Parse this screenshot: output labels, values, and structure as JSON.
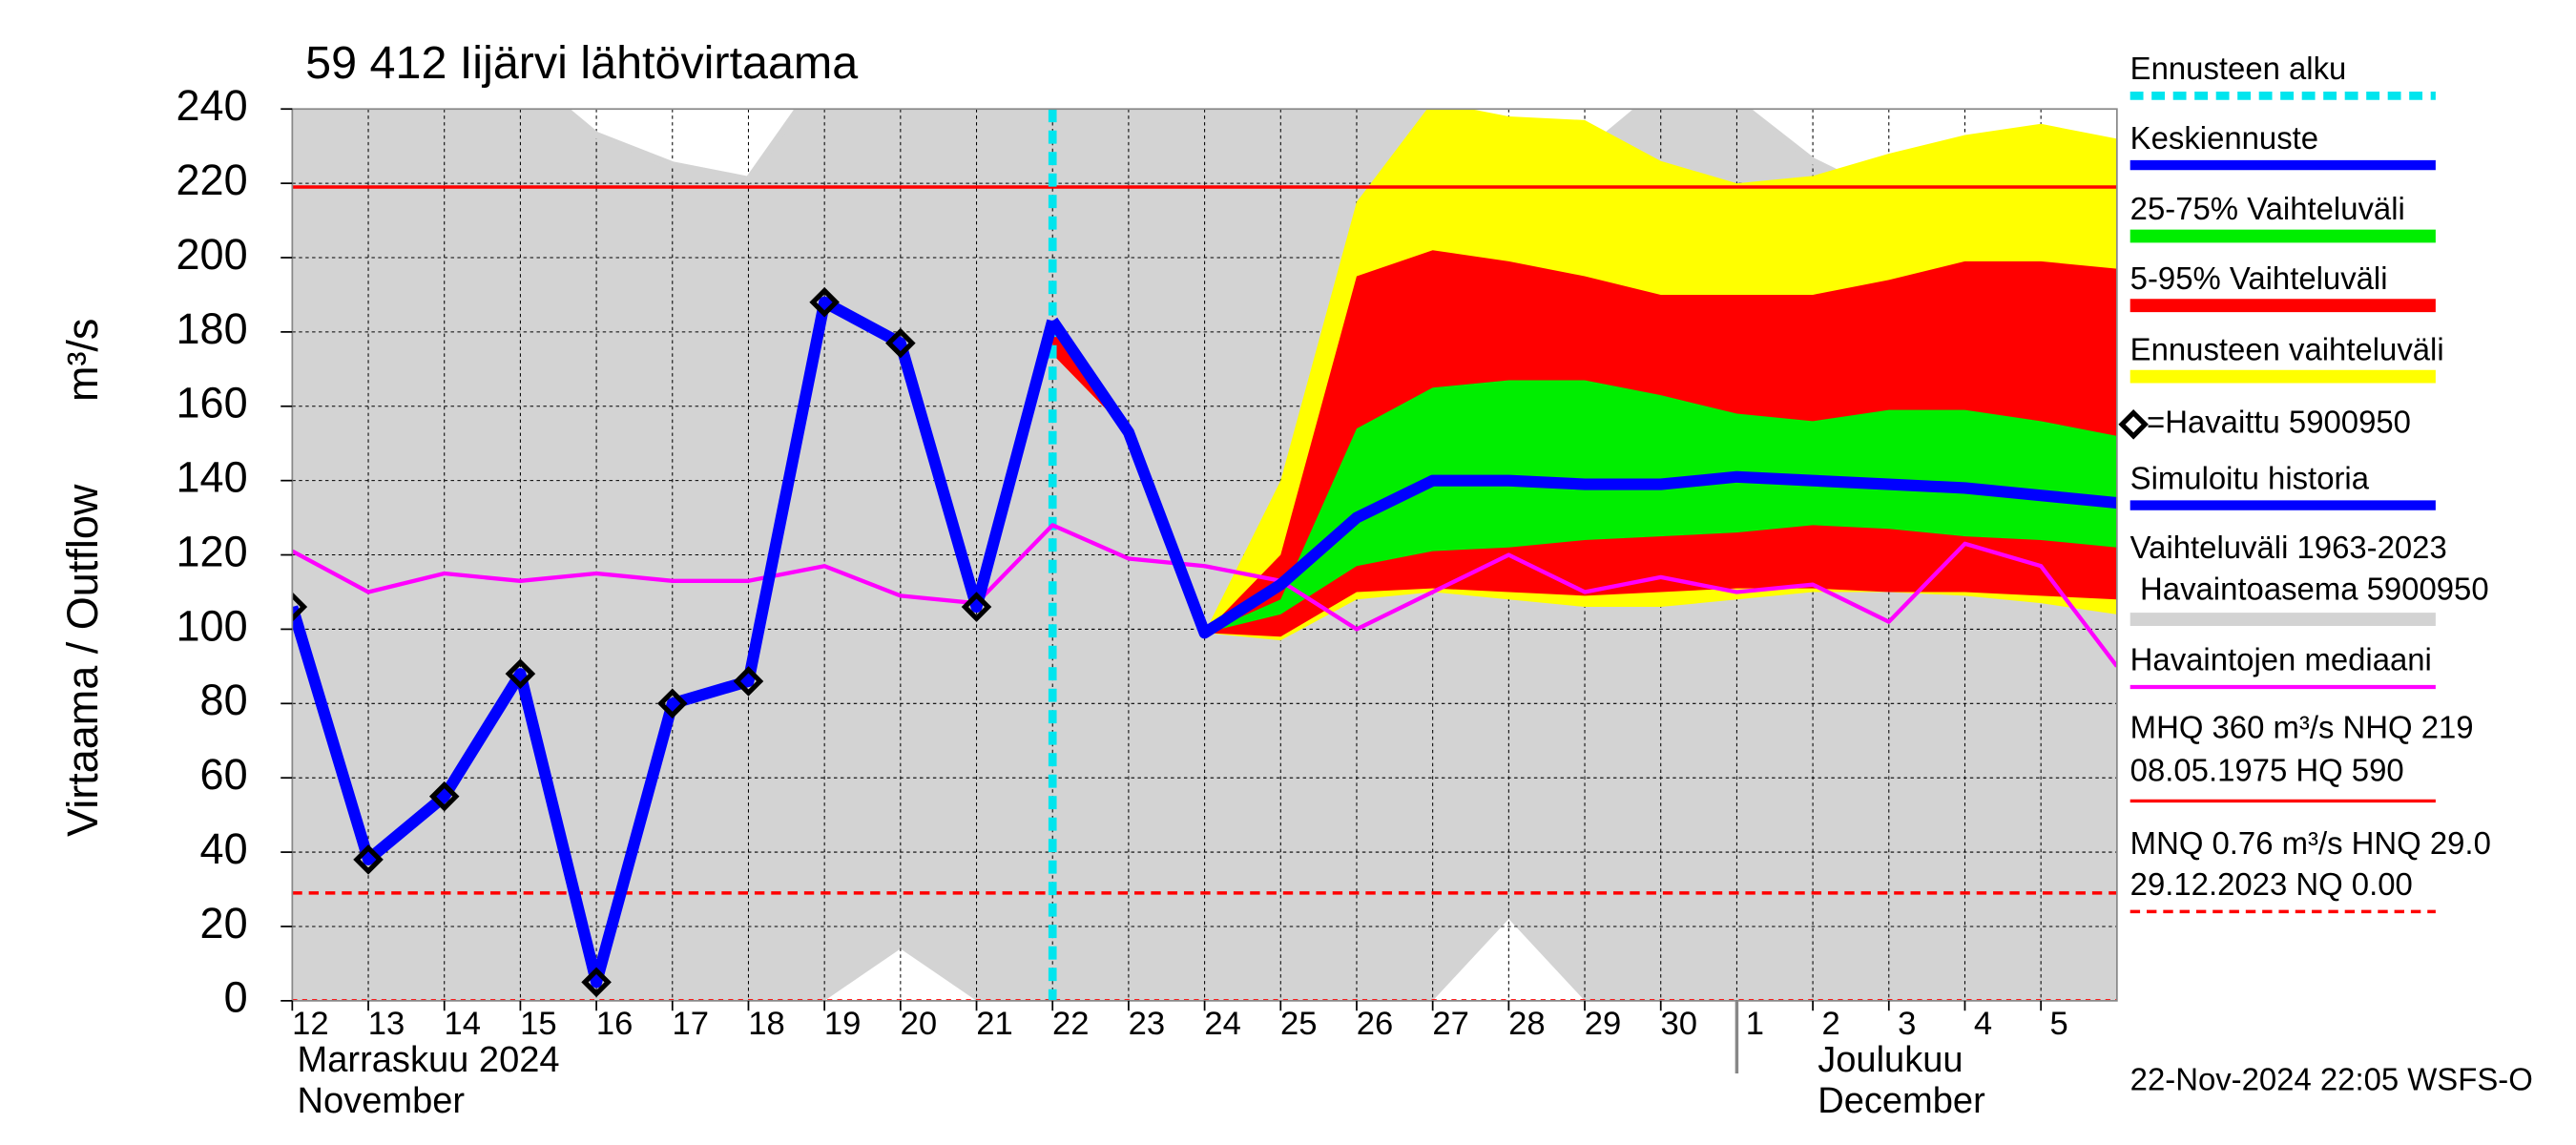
{
  "chart_data": {
    "type": "line",
    "title": "59 412 Iijärvi lähtövirtaama",
    "y_label": "Virtaama / Outflow",
    "y_unit": "m³/s",
    "xlim": [
      0,
      24
    ],
    "ylim": [
      0,
      240
    ],
    "yticks": [
      0,
      20,
      40,
      60,
      80,
      100,
      120,
      140,
      160,
      180,
      200,
      220,
      240
    ],
    "xticks": [
      {
        "value": 0,
        "label": "12"
      },
      {
        "value": 1,
        "label": "13"
      },
      {
        "value": 2,
        "label": "14"
      },
      {
        "value": 3,
        "label": "15"
      },
      {
        "value": 4,
        "label": "16"
      },
      {
        "value": 5,
        "label": "17"
      },
      {
        "value": 6,
        "label": "18"
      },
      {
        "value": 7,
        "label": "19"
      },
      {
        "value": 8,
        "label": "20"
      },
      {
        "value": 9,
        "label": "21"
      },
      {
        "value": 10,
        "label": "22"
      },
      {
        "value": 11,
        "label": "23"
      },
      {
        "value": 12,
        "label": "24"
      },
      {
        "value": 13,
        "label": "25"
      },
      {
        "value": 14,
        "label": "26"
      },
      {
        "value": 15,
        "label": "27"
      },
      {
        "value": 16,
        "label": "28"
      },
      {
        "value": 17,
        "label": "29"
      },
      {
        "value": 18,
        "label": "30"
      },
      {
        "value": 19,
        "label": "1"
      },
      {
        "value": 20,
        "label": "2"
      },
      {
        "value": 21,
        "label": "3"
      },
      {
        "value": 22,
        "label": "4"
      },
      {
        "value": 23,
        "label": "5"
      }
    ],
    "grid": true,
    "x": [
      0,
      1,
      2,
      3,
      4,
      5,
      6,
      7,
      8,
      9,
      10,
      11,
      12,
      13,
      14,
      15,
      16,
      17,
      18,
      19,
      20,
      21,
      22,
      23,
      24
    ],
    "months": [
      {
        "name": "Marraskuu 2024",
        "name_en": "November",
        "x": 0
      },
      {
        "name": "Joulukuu",
        "name_en": "December",
        "x": 19
      }
    ],
    "forecast_start": {
      "name": "Ennusteen alku",
      "x": 10,
      "color": "#00e5ee"
    },
    "bands": [
      {
        "name": "Vaihteluväli 1963-2023",
        "station": "Havaintoasema 5900950",
        "color": "#d3d3d3",
        "upper": [
          250,
          250,
          250,
          250,
          233,
          225,
          221,
          250,
          250,
          250,
          250,
          250,
          250,
          250,
          250,
          250,
          228,
          228,
          245,
          242,
          226,
          216,
          224,
          196,
          228
        ],
        "lower": [
          0,
          0,
          0,
          0,
          0,
          0,
          0,
          0,
          14,
          0,
          0,
          0,
          0,
          0,
          0,
          0,
          22,
          0,
          0,
          0,
          0,
          0,
          0,
          0,
          0
        ]
      },
      {
        "name": "Ennusteen vaihteluväli",
        "color": "#ffff00",
        "upper": [
          null,
          null,
          null,
          null,
          null,
          null,
          null,
          null,
          null,
          null,
          183,
          153,
          99,
          140,
          215,
          242,
          238,
          237,
          226,
          220,
          222,
          228,
          233,
          236,
          232
        ],
        "lower": [
          null,
          null,
          null,
          null,
          null,
          null,
          null,
          null,
          null,
          null,
          174,
          153,
          99,
          97,
          108,
          110,
          108,
          106,
          106,
          108,
          110,
          110,
          109,
          107,
          104
        ]
      },
      {
        "name": "5-95% Vaihteluväli",
        "color": "#ff0000",
        "upper": [
          null,
          null,
          null,
          null,
          null,
          null,
          null,
          null,
          null,
          null,
          183,
          153,
          99,
          120,
          195,
          202,
          199,
          195,
          190,
          190,
          190,
          194,
          199,
          199,
          197
        ],
        "lower": [
          null,
          null,
          null,
          null,
          null,
          null,
          null,
          null,
          null,
          null,
          174,
          153,
          99,
          98,
          110,
          111,
          110,
          109,
          110,
          111,
          111,
          110,
          110,
          109,
          108
        ]
      },
      {
        "name": "25-75% Vaihteluväli",
        "color": "#00ee00",
        "upper": [
          null,
          null,
          null,
          null,
          null,
          null,
          null,
          null,
          null,
          null,
          null,
          null,
          99,
          108,
          154,
          165,
          167,
          167,
          163,
          158,
          156,
          159,
          159,
          156,
          152
        ],
        "lower": [
          null,
          null,
          null,
          null,
          null,
          null,
          null,
          null,
          null,
          null,
          null,
          null,
          99,
          104,
          117,
          121,
          122,
          124,
          125,
          126,
          128,
          127,
          125,
          124,
          122
        ]
      }
    ],
    "reference_lines": [
      {
        "value": 219,
        "color": "#ff0000",
        "dash": "solid",
        "text": "MHQ  360 m³/s NHQ  219",
        "text2": "08.05.1975 HQ  590"
      },
      {
        "value": 29,
        "color": "#ff0000",
        "dash": "dashed",
        "text": "MNQ 0.76 m³/s HNQ 29.0",
        "text2": "29.12.2023 NQ 0.00"
      },
      {
        "value": 0,
        "color": "#ff0000",
        "dash": "dotted"
      }
    ],
    "series": [
      {
        "name": "Havaintojen mediaani",
        "color": "#ff00ff",
        "width": 2.5,
        "values": [
          121,
          110,
          115,
          113,
          115,
          113,
          113,
          117,
          109,
          107,
          128,
          119,
          117,
          113,
          100,
          110,
          120,
          110,
          114,
          110,
          112,
          102,
          123,
          117,
          90
        ]
      },
      {
        "name": "Simuloitu historia",
        "color": "#0000ff",
        "width": 7,
        "values": [
          106,
          38,
          55,
          88,
          5,
          80,
          86,
          188,
          177,
          106,
          183,
          null,
          null,
          null,
          null,
          null,
          null,
          null,
          null,
          null,
          null,
          null,
          null,
          null,
          null
        ]
      },
      {
        "name": "Keskiennuste",
        "color": "#0000ff",
        "width": 7,
        "values": [
          null,
          null,
          null,
          null,
          null,
          null,
          null,
          null,
          null,
          null,
          183,
          153,
          99,
          112,
          130,
          140,
          140,
          139,
          139,
          141,
          140,
          139,
          138,
          136,
          134
        ]
      },
      {
        "name": "=Havaittu 5900950",
        "color": "#000000",
        "marker": "diamond",
        "values": [
          106,
          38,
          55,
          88,
          5,
          80,
          86,
          188,
          177,
          106,
          null,
          null,
          null,
          null,
          null,
          null,
          null,
          null,
          null,
          null,
          null,
          null,
          null,
          null,
          null
        ]
      }
    ],
    "footer": "22-Nov-2024 22:05 WSFS-O"
  }
}
